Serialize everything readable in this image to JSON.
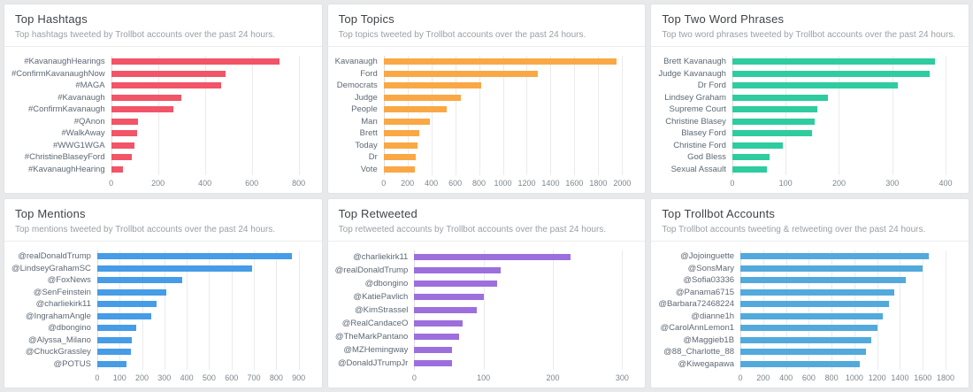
{
  "panels": [
    {
      "title": "Top Hashtags",
      "subtitle": "Top hashtags tweeted by Trollbot accounts over the past 24 hours."
    },
    {
      "title": "Top Topics",
      "subtitle": "Top topics tweeted by Trollbot accounts over the past 24 hours."
    },
    {
      "title": "Top Two Word Phrases",
      "subtitle": "Top two word phrases tweeted by Trollbot accounts over the past 24 hours."
    },
    {
      "title": "Top Mentions",
      "subtitle": "Top mentions tweeted by Trollbot accounts over the past 24 hours."
    },
    {
      "title": "Top Retweeted",
      "subtitle": "Top retweeted accounts by Trollbot accounts over the past 24 hours."
    },
    {
      "title": "Top Trollbot Accounts",
      "subtitle": "Top Trollbot accounts tweeting & retweeting over the past 24 hours."
    }
  ],
  "chart_data": [
    {
      "type": "bar",
      "orientation": "horizontal",
      "title": "Top Hashtags",
      "categories": [
        "#KavanaughHearings",
        "#ConfirmKavanaughNow",
        "#MAGA",
        "#Kavanaugh",
        "#ConfirmKavanaugh",
        "#QAnon",
        "#WalkAway",
        "#WWG1WGA",
        "#ChristineBlaseyFord",
        "#KavanaughHearing"
      ],
      "values": [
        720,
        490,
        470,
        300,
        265,
        115,
        110,
        100,
        90,
        50
      ],
      "xlim": [
        0,
        800
      ],
      "xticks": [
        0,
        200,
        400,
        600,
        800
      ],
      "color": "#f25468",
      "grid": true,
      "legend": "none"
    },
    {
      "type": "bar",
      "orientation": "horizontal",
      "title": "Top Topics",
      "categories": [
        "Kavanaugh",
        "Ford",
        "Democrats",
        "Judge",
        "People",
        "Man",
        "Brett",
        "Today",
        "Dr",
        "Vote"
      ],
      "values": [
        1950,
        1290,
        820,
        650,
        530,
        390,
        300,
        285,
        270,
        265
      ],
      "xlim": [
        0,
        2000
      ],
      "xticks": [
        0,
        200,
        400,
        600,
        800,
        1000,
        1200,
        1400,
        1600,
        1800,
        2000
      ],
      "color": "#f9a845",
      "grid": true,
      "legend": "none"
    },
    {
      "type": "bar",
      "orientation": "horizontal",
      "title": "Top Two Word Phrases",
      "categories": [
        "Brett Kavanaugh",
        "Judge Kavanaugh",
        "Dr Ford",
        "Lindsey Graham",
        "Supreme Court",
        "Christine Blasey",
        "Blasey Ford",
        "Christine Ford",
        "God Bless",
        "Sexual Assault"
      ],
      "values": [
        380,
        370,
        310,
        180,
        160,
        155,
        150,
        95,
        70,
        65
      ],
      "xlim": [
        0,
        400
      ],
      "xticks": [
        0,
        100,
        200,
        300,
        400
      ],
      "color": "#2ecc9e",
      "grid": true,
      "legend": "none"
    },
    {
      "type": "bar",
      "orientation": "horizontal",
      "title": "Top Mentions",
      "categories": [
        "@realDonaldTrump",
        "@LindseyGrahamSC",
        "@FoxNews",
        "@SenFeinstein",
        "@charliekirk11",
        "@IngrahamAngle",
        "@dbongino",
        "@Alyssa_Milano",
        "@ChuckGrassley",
        "@POTUS"
      ],
      "values": [
        870,
        690,
        380,
        310,
        265,
        240,
        175,
        155,
        150,
        130
      ],
      "xlim": [
        0,
        900
      ],
      "xticks": [
        0,
        100,
        200,
        300,
        400,
        500,
        600,
        700,
        800,
        900
      ],
      "color": "#469ce6",
      "grid": true,
      "legend": "none"
    },
    {
      "type": "bar",
      "orientation": "horizontal",
      "title": "Top Retweeted",
      "categories": [
        "@charliekirk11",
        "@realDonaldTrump",
        "@dbongino",
        "@KatiePavlich",
        "@KimStrassel",
        "@RealCandaceO",
        "@TheMarkPantano",
        "@MZHemingway",
        "@DonaldJTrumpJr"
      ],
      "values": [
        225,
        125,
        120,
        100,
        90,
        70,
        65,
        55,
        55
      ],
      "xlim": [
        0,
        300
      ],
      "xticks": [
        0,
        100,
        200,
        300
      ],
      "color": "#9d6fdd",
      "grid": true,
      "legend": "none"
    },
    {
      "type": "bar",
      "orientation": "horizontal",
      "title": "Top Trollbot Accounts",
      "categories": [
        "@Jojoinguette",
        "@SonsMary",
        "@Sofia03336",
        "@Panama6715",
        "@Barbara72468224",
        "@dianne1h",
        "@CarolAnnLemon1",
        "@Maggieb1B",
        "@88_Charlotte_88",
        "@Kiwegapawa"
      ],
      "values": [
        1650,
        1600,
        1450,
        1350,
        1300,
        1250,
        1200,
        1150,
        1100,
        1050
      ],
      "xlim": [
        0,
        1800
      ],
      "xticks": [
        0,
        200,
        400,
        600,
        800,
        1000,
        1200,
        1400,
        1600,
        1800
      ],
      "color": "#52a9dc",
      "grid": true,
      "legend": "none"
    }
  ]
}
